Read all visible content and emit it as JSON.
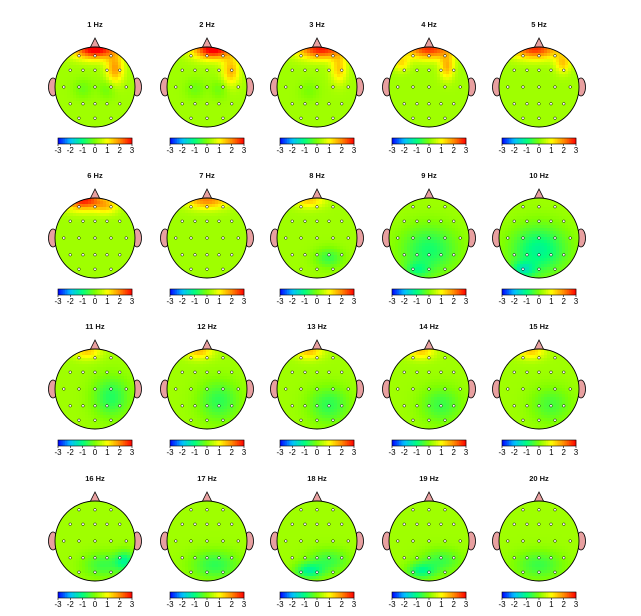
{
  "chart_data": {
    "type": "heatmap",
    "panels": [
      {
        "title": "1 Hz",
        "blobs": [
          [
            0,
            -0.95,
            0.55,
            0.25,
            3.0
          ],
          [
            0.5,
            -0.45,
            0.22,
            0.35,
            1.6
          ],
          [
            -0.3,
            0.05,
            0.25,
            0.25,
            -0.4
          ],
          [
            0.3,
            0.05,
            0.22,
            0.25,
            -0.4
          ]
        ]
      },
      {
        "title": "2 Hz",
        "blobs": [
          [
            0.15,
            -0.95,
            0.5,
            0.25,
            3.0
          ],
          [
            0.6,
            -0.4,
            0.22,
            0.35,
            1.4
          ],
          [
            -0.3,
            0.05,
            0.25,
            0.25,
            -0.4
          ],
          [
            0.3,
            0.05,
            0.22,
            0.25,
            -0.4
          ]
        ]
      },
      {
        "title": "3 Hz",
        "blobs": [
          [
            0.1,
            -0.95,
            0.6,
            0.25,
            2.6
          ],
          [
            0.55,
            -0.45,
            0.2,
            0.35,
            1.2
          ],
          [
            -0.2,
            0.1,
            0.25,
            0.25,
            -0.3
          ]
        ]
      },
      {
        "title": "4 Hz",
        "blobs": [
          [
            0.0,
            -0.95,
            0.6,
            0.25,
            2.4
          ],
          [
            0.45,
            -0.5,
            0.18,
            0.3,
            1.4
          ],
          [
            -0.7,
            -0.6,
            0.2,
            0.2,
            1.0
          ]
        ]
      },
      {
        "title": "5 Hz",
        "blobs": [
          [
            -0.1,
            -0.95,
            0.6,
            0.25,
            2.4
          ],
          [
            0.6,
            -0.6,
            0.2,
            0.25,
            1.2
          ]
        ]
      },
      {
        "title": "6 Hz",
        "blobs": [
          [
            -0.3,
            -0.95,
            0.5,
            0.25,
            2.6
          ],
          [
            0.3,
            -0.8,
            0.3,
            0.2,
            1.0
          ]
        ]
      },
      {
        "title": "7 Hz",
        "blobs": [
          [
            0.0,
            -0.95,
            0.55,
            0.22,
            1.8
          ]
        ]
      },
      {
        "title": "8 Hz",
        "blobs": [
          [
            -0.2,
            -0.95,
            0.4,
            0.2,
            1.2
          ],
          [
            0.3,
            0.5,
            0.35,
            0.25,
            -0.8
          ]
        ]
      },
      {
        "title": "9 Hz",
        "blobs": [
          [
            0.0,
            0.3,
            0.7,
            0.6,
            -1.1
          ],
          [
            -0.3,
            0.8,
            0.3,
            0.2,
            -0.8
          ]
        ]
      },
      {
        "title": "10 Hz",
        "blobs": [
          [
            0.0,
            0.3,
            0.7,
            0.6,
            -1.4
          ],
          [
            -0.4,
            0.8,
            0.3,
            0.2,
            -1.2
          ]
        ]
      },
      {
        "title": "11 Hz",
        "blobs": [
          [
            -0.2,
            -0.95,
            0.35,
            0.2,
            1.2
          ],
          [
            0.4,
            0.2,
            0.45,
            0.5,
            -1.0
          ]
        ]
      },
      {
        "title": "12 Hz",
        "blobs": [
          [
            -0.2,
            -0.95,
            0.35,
            0.2,
            1.3
          ],
          [
            0.3,
            0.3,
            0.5,
            0.5,
            -0.9
          ]
        ]
      },
      {
        "title": "13 Hz",
        "blobs": [
          [
            -0.2,
            -0.95,
            0.35,
            0.2,
            1.3
          ],
          [
            0.3,
            0.4,
            0.5,
            0.45,
            -0.9
          ]
        ]
      },
      {
        "title": "14 Hz",
        "blobs": [
          [
            -0.2,
            -0.95,
            0.35,
            0.2,
            1.2
          ],
          [
            0.3,
            0.4,
            0.5,
            0.45,
            -0.8
          ]
        ]
      },
      {
        "title": "15 Hz",
        "blobs": [
          [
            -0.2,
            -0.95,
            0.35,
            0.2,
            1.2
          ],
          [
            0.3,
            0.4,
            0.5,
            0.45,
            -0.7
          ]
        ]
      },
      {
        "title": "16 Hz",
        "blobs": [
          [
            0.75,
            0.5,
            0.25,
            0.25,
            -1.2
          ],
          [
            0.2,
            0.6,
            0.5,
            0.3,
            -0.8
          ]
        ]
      },
      {
        "title": "17 Hz",
        "blobs": [
          [
            0.2,
            0.6,
            0.6,
            0.35,
            -0.9
          ]
        ]
      },
      {
        "title": "18 Hz",
        "blobs": [
          [
            -0.2,
            0.75,
            0.35,
            0.2,
            -1.3
          ],
          [
            0.3,
            0.5,
            0.5,
            0.3,
            -0.8
          ]
        ]
      },
      {
        "title": "19 Hz",
        "blobs": [
          [
            -0.2,
            0.75,
            0.35,
            0.2,
            -1.2
          ],
          [
            0.3,
            0.5,
            0.5,
            0.3,
            -0.8
          ]
        ]
      },
      {
        "title": "20 Hz",
        "blobs": [
          [
            0.0,
            0.6,
            0.6,
            0.35,
            -0.8
          ]
        ]
      }
    ],
    "colorbar": {
      "min": -3,
      "max": 3,
      "ticks": [
        "-3",
        "-2",
        "-1",
        "0",
        "1",
        "2",
        "3"
      ],
      "colors": [
        "#0000ff",
        "#00bfff",
        "#00ff7f",
        "#7fff00",
        "#ffff00",
        "#ff8c00",
        "#ff0000"
      ]
    },
    "electrodes": [
      [
        -0.4,
        -0.78
      ],
      [
        0,
        -0.78
      ],
      [
        0.4,
        -0.78
      ],
      [
        -0.62,
        -0.42
      ],
      [
        -0.3,
        -0.42
      ],
      [
        0,
        -0.42
      ],
      [
        0.3,
        -0.42
      ],
      [
        0.62,
        -0.42
      ],
      [
        -0.78,
        0
      ],
      [
        -0.4,
        0
      ],
      [
        0,
        0
      ],
      [
        0.4,
        0
      ],
      [
        0.78,
        0
      ],
      [
        -0.62,
        0.42
      ],
      [
        -0.3,
        0.42
      ],
      [
        0,
        0.42
      ],
      [
        0.3,
        0.42
      ],
      [
        0.62,
        0.42
      ],
      [
        -0.4,
        0.78
      ],
      [
        0,
        0.78
      ],
      [
        0.4,
        0.78
      ]
    ],
    "head_outline_color": "#000000",
    "nose_ear_color": "#e8a0a0"
  }
}
